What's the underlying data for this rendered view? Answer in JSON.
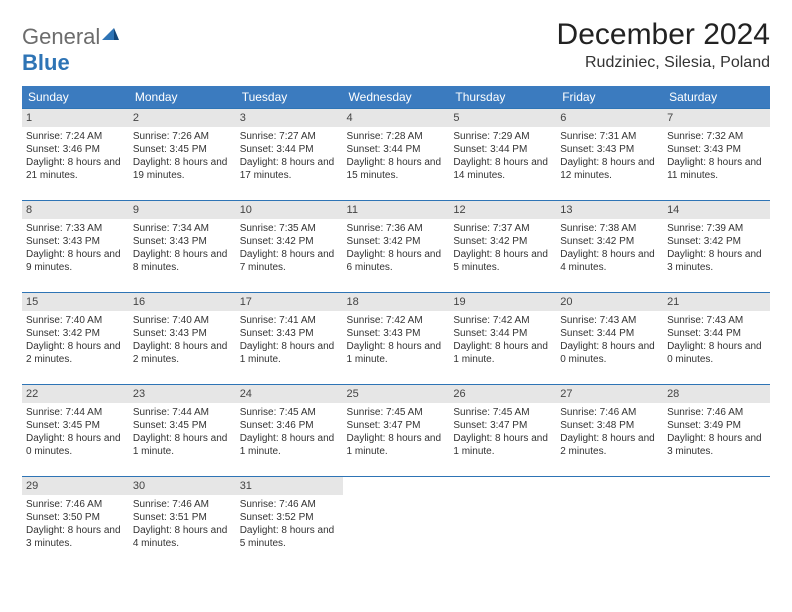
{
  "logo": {
    "general": "General",
    "blue": "Blue"
  },
  "title": "December 2024",
  "location": "Rudziniec, Silesia, Poland",
  "colors": {
    "header_bg": "#3b7bbf",
    "daynum_bg": "#e6e6e6",
    "rule": "#2e74b5",
    "text": "#333333",
    "logo_gray": "#6c6c6c",
    "logo_blue": "#2e74b5"
  },
  "weekdays": [
    "Sunday",
    "Monday",
    "Tuesday",
    "Wednesday",
    "Thursday",
    "Friday",
    "Saturday"
  ],
  "weeks": [
    [
      {
        "n": "1",
        "sr": "7:24 AM",
        "ss": "3:46 PM",
        "dl": "8 hours and 21 minutes."
      },
      {
        "n": "2",
        "sr": "7:26 AM",
        "ss": "3:45 PM",
        "dl": "8 hours and 19 minutes."
      },
      {
        "n": "3",
        "sr": "7:27 AM",
        "ss": "3:44 PM",
        "dl": "8 hours and 17 minutes."
      },
      {
        "n": "4",
        "sr": "7:28 AM",
        "ss": "3:44 PM",
        "dl": "8 hours and 15 minutes."
      },
      {
        "n": "5",
        "sr": "7:29 AM",
        "ss": "3:44 PM",
        "dl": "8 hours and 14 minutes."
      },
      {
        "n": "6",
        "sr": "7:31 AM",
        "ss": "3:43 PM",
        "dl": "8 hours and 12 minutes."
      },
      {
        "n": "7",
        "sr": "7:32 AM",
        "ss": "3:43 PM",
        "dl": "8 hours and 11 minutes."
      }
    ],
    [
      {
        "n": "8",
        "sr": "7:33 AM",
        "ss": "3:43 PM",
        "dl": "8 hours and 9 minutes."
      },
      {
        "n": "9",
        "sr": "7:34 AM",
        "ss": "3:43 PM",
        "dl": "8 hours and 8 minutes."
      },
      {
        "n": "10",
        "sr": "7:35 AM",
        "ss": "3:42 PM",
        "dl": "8 hours and 7 minutes."
      },
      {
        "n": "11",
        "sr": "7:36 AM",
        "ss": "3:42 PM",
        "dl": "8 hours and 6 minutes."
      },
      {
        "n": "12",
        "sr": "7:37 AM",
        "ss": "3:42 PM",
        "dl": "8 hours and 5 minutes."
      },
      {
        "n": "13",
        "sr": "7:38 AM",
        "ss": "3:42 PM",
        "dl": "8 hours and 4 minutes."
      },
      {
        "n": "14",
        "sr": "7:39 AM",
        "ss": "3:42 PM",
        "dl": "8 hours and 3 minutes."
      }
    ],
    [
      {
        "n": "15",
        "sr": "7:40 AM",
        "ss": "3:42 PM",
        "dl": "8 hours and 2 minutes."
      },
      {
        "n": "16",
        "sr": "7:40 AM",
        "ss": "3:43 PM",
        "dl": "8 hours and 2 minutes."
      },
      {
        "n": "17",
        "sr": "7:41 AM",
        "ss": "3:43 PM",
        "dl": "8 hours and 1 minute."
      },
      {
        "n": "18",
        "sr": "7:42 AM",
        "ss": "3:43 PM",
        "dl": "8 hours and 1 minute."
      },
      {
        "n": "19",
        "sr": "7:42 AM",
        "ss": "3:44 PM",
        "dl": "8 hours and 1 minute."
      },
      {
        "n": "20",
        "sr": "7:43 AM",
        "ss": "3:44 PM",
        "dl": "8 hours and 0 minutes."
      },
      {
        "n": "21",
        "sr": "7:43 AM",
        "ss": "3:44 PM",
        "dl": "8 hours and 0 minutes."
      }
    ],
    [
      {
        "n": "22",
        "sr": "7:44 AM",
        "ss": "3:45 PM",
        "dl": "8 hours and 0 minutes."
      },
      {
        "n": "23",
        "sr": "7:44 AM",
        "ss": "3:45 PM",
        "dl": "8 hours and 1 minute."
      },
      {
        "n": "24",
        "sr": "7:45 AM",
        "ss": "3:46 PM",
        "dl": "8 hours and 1 minute."
      },
      {
        "n": "25",
        "sr": "7:45 AM",
        "ss": "3:47 PM",
        "dl": "8 hours and 1 minute."
      },
      {
        "n": "26",
        "sr": "7:45 AM",
        "ss": "3:47 PM",
        "dl": "8 hours and 1 minute."
      },
      {
        "n": "27",
        "sr": "7:46 AM",
        "ss": "3:48 PM",
        "dl": "8 hours and 2 minutes."
      },
      {
        "n": "28",
        "sr": "7:46 AM",
        "ss": "3:49 PM",
        "dl": "8 hours and 3 minutes."
      }
    ],
    [
      {
        "n": "29",
        "sr": "7:46 AM",
        "ss": "3:50 PM",
        "dl": "8 hours and 3 minutes."
      },
      {
        "n": "30",
        "sr": "7:46 AM",
        "ss": "3:51 PM",
        "dl": "8 hours and 4 minutes."
      },
      {
        "n": "31",
        "sr": "7:46 AM",
        "ss": "3:52 PM",
        "dl": "8 hours and 5 minutes."
      },
      null,
      null,
      null,
      null
    ]
  ],
  "labels": {
    "sunrise": "Sunrise: ",
    "sunset": "Sunset: ",
    "daylight": "Daylight: "
  }
}
